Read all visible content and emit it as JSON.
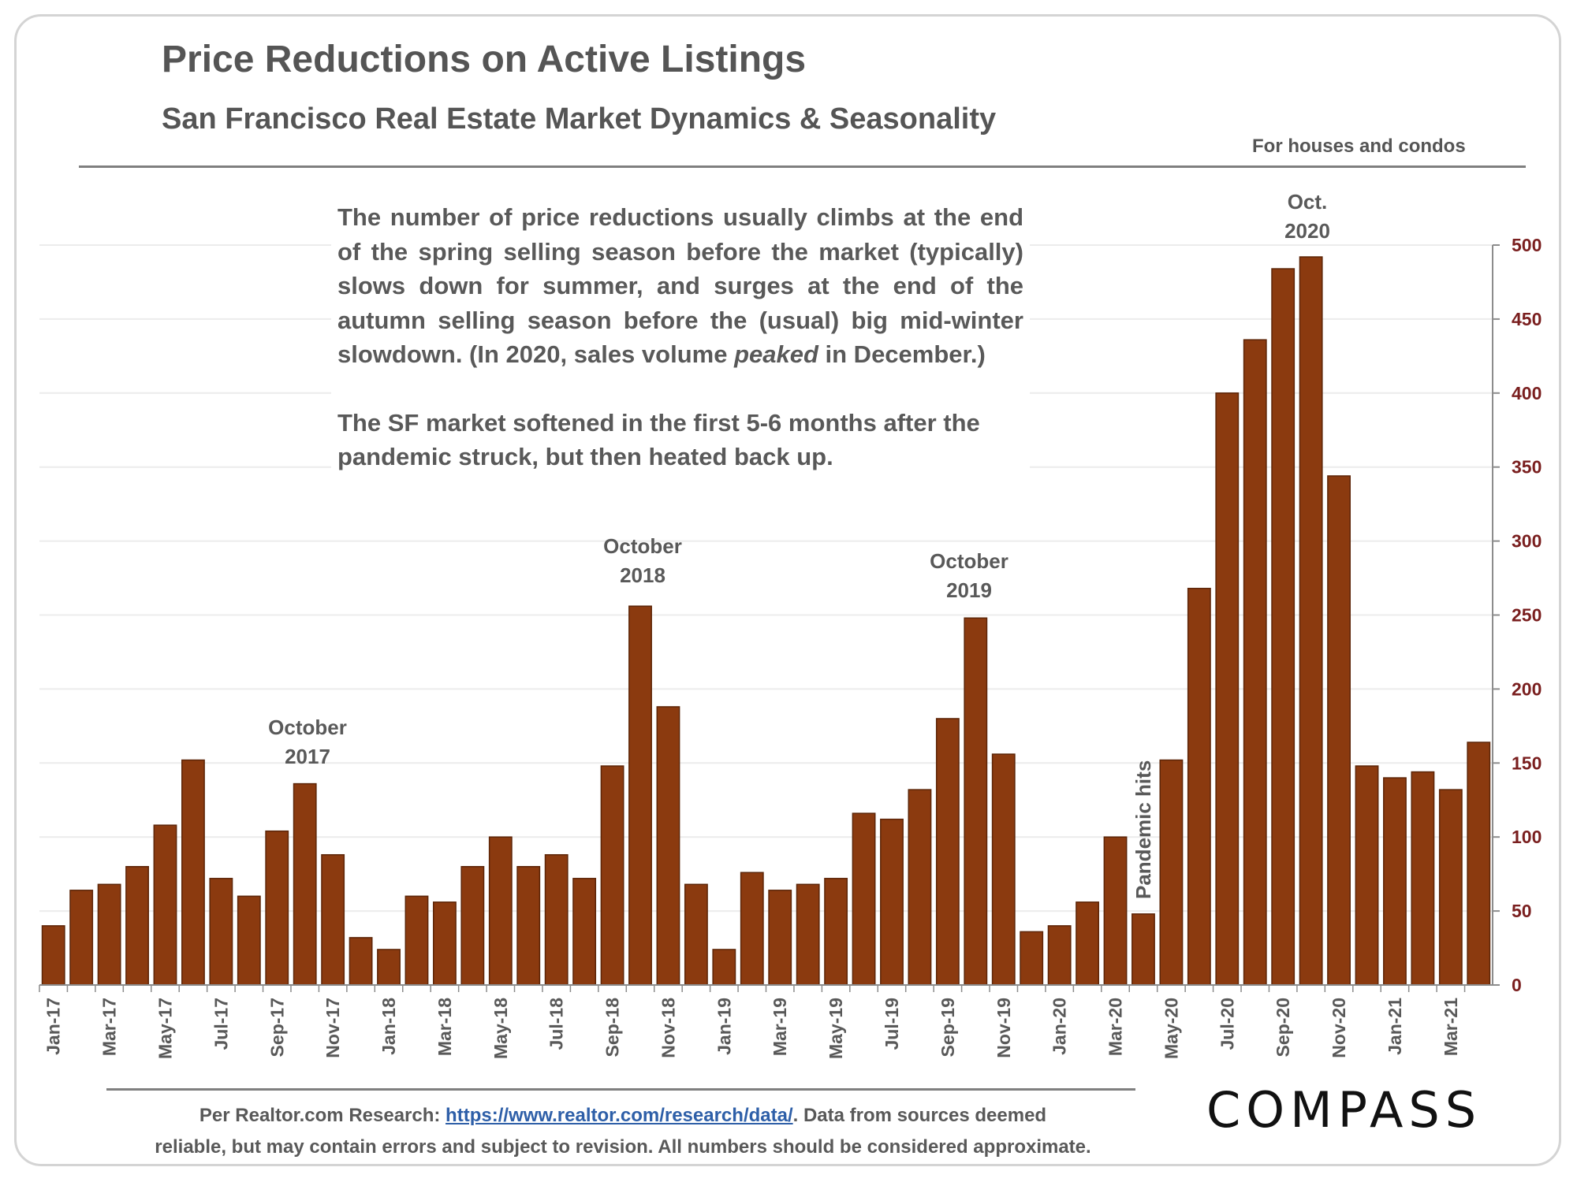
{
  "title": "Price Reductions on Active Listings",
  "subtitle": "San Francisco Real Estate Market Dynamics & Seasonality",
  "scope_note": "For houses and condos",
  "annotation": {
    "para1_part1": "The number of price reductions usually climbs at the end of the spring selling season before the market (typically) slows down for summer, and surges at the end of the autumn selling season before the (usual) big mid-winter slowdown. (In 2020, sales volume ",
    "para1_emphasis": "peaked",
    "para1_part2": " in December.)",
    "para2": "The SF market softened in the first 5-6 months after the pandemic struck, but then heated back up."
  },
  "callouts": {
    "oct2017": [
      "October",
      "2017"
    ],
    "oct2018": [
      "October",
      "2018"
    ],
    "oct2019": [
      "October",
      "2019"
    ],
    "oct2020": [
      "Oct.",
      "2020"
    ],
    "pandemic": "Pandemic hits"
  },
  "footer": {
    "prefix": "Per Realtor.com Research:  ",
    "link": "https://www.realtor.com/research/data/",
    "after_link": ". Data from sources deemed",
    "line2": "reliable, but may contain errors and subject to revision. All numbers should be considered approximate."
  },
  "logo": "COMPASS",
  "colors": {
    "bar": "#8b3a0f",
    "bar_outline": "#5c2508",
    "y_axis_labels": "#7a1f1f",
    "gridline": "#ececec"
  },
  "chart_data": {
    "type": "bar",
    "categories": [
      "Jan-17",
      "Feb-17",
      "Mar-17",
      "Apr-17",
      "May-17",
      "Jun-17",
      "Jul-17",
      "Aug-17",
      "Sep-17",
      "Oct-17",
      "Nov-17",
      "Dec-17",
      "Jan-18",
      "Feb-18",
      "Mar-18",
      "Apr-18",
      "May-18",
      "Jun-18",
      "Jul-18",
      "Aug-18",
      "Sep-18",
      "Oct-18",
      "Nov-18",
      "Dec-18",
      "Jan-19",
      "Feb-19",
      "Mar-19",
      "Apr-19",
      "May-19",
      "Jun-19",
      "Jul-19",
      "Aug-19",
      "Sep-19",
      "Oct-19",
      "Nov-19",
      "Dec-19",
      "Jan-20",
      "Feb-20",
      "Mar-20",
      "Apr-20",
      "May-20",
      "Jun-20",
      "Jul-20",
      "Aug-20",
      "Sep-20",
      "Oct-20",
      "Nov-20",
      "Dec-20",
      "Jan-21",
      "Feb-21",
      "Mar-21",
      "Apr-21"
    ],
    "values": [
      40,
      64,
      68,
      80,
      108,
      152,
      72,
      60,
      104,
      136,
      88,
      32,
      24,
      60,
      56,
      80,
      100,
      80,
      88,
      72,
      148,
      256,
      188,
      68,
      24,
      76,
      64,
      68,
      72,
      116,
      112,
      132,
      180,
      248,
      156,
      36,
      40,
      56,
      100,
      48,
      152,
      268,
      400,
      436,
      484,
      492,
      344,
      148,
      140,
      144,
      132,
      164
    ],
    "x_tick_labels": [
      "Jan-17",
      "Mar-17",
      "May-17",
      "Jul-17",
      "Sep-17",
      "Nov-17",
      "Jan-18",
      "Mar-18",
      "May-18",
      "Jul-18",
      "Sep-18",
      "Nov-18",
      "Jan-19",
      "Mar-19",
      "May-19",
      "Jul-19",
      "Sep-19",
      "Nov-19",
      "Jan-20",
      "Mar-20",
      "May-20",
      "Jul-20",
      "Sep-20",
      "Nov-20",
      "Jan-21",
      "Mar-21"
    ],
    "y_ticks": [
      0,
      50,
      100,
      150,
      200,
      250,
      300,
      350,
      400,
      450,
      500
    ],
    "ylim": [
      0,
      500
    ],
    "y_axis_side": "right",
    "grid": true,
    "legend": "none",
    "title": "Price Reductions on Active Listings",
    "xlabel": "",
    "ylabel": ""
  }
}
